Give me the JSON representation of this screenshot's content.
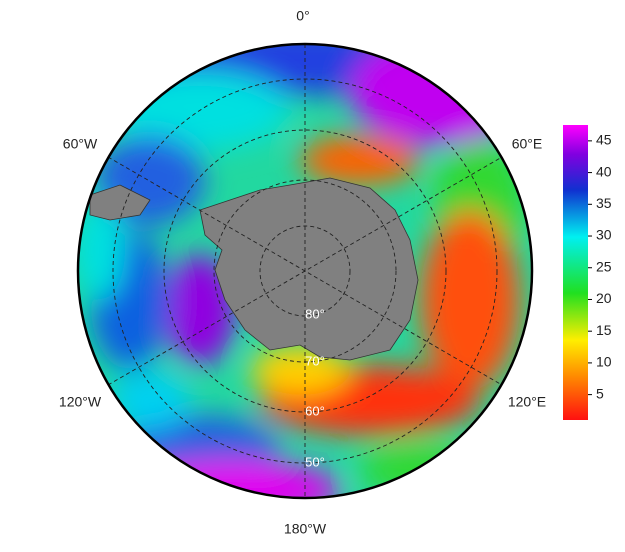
{
  "map": {
    "longitude_labels": [
      "0°",
      "60°E",
      "120°E",
      "180°W",
      "120°W",
      "60°W"
    ],
    "latitude_labels": [
      "80°",
      "70°",
      "60°",
      "50°"
    ]
  },
  "colorbar": {
    "range": [
      1,
      47.5
    ],
    "ticks": [
      5,
      10,
      15,
      20,
      25,
      30,
      35,
      40,
      45
    ]
  }
}
